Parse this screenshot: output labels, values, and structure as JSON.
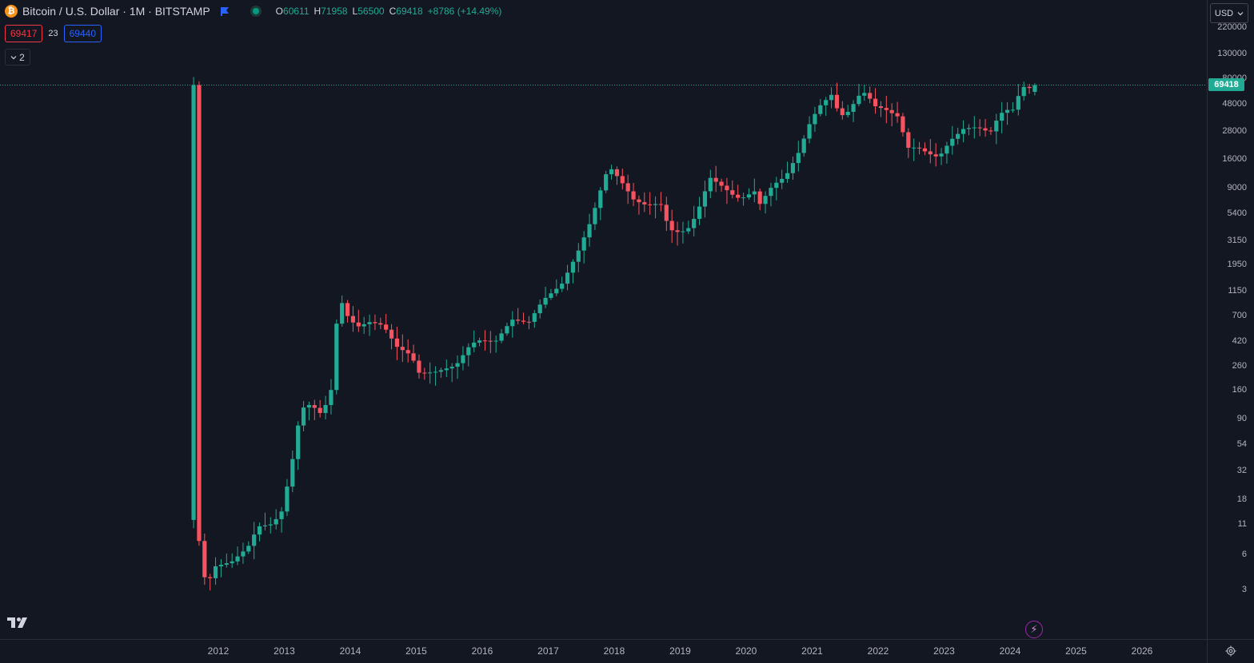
{
  "header": {
    "coin_icon": "bitcoin-icon",
    "title": "Bitcoin / U.S. Dollar · 1M · BITSTAMP",
    "ohlc": {
      "open_label": "O",
      "open": "60611",
      "high_label": "H",
      "high": "71958",
      "low_label": "L",
      "low": "56500",
      "close_label": "C",
      "close": "69418",
      "change": "+8786 (+14.49%)"
    }
  },
  "trade": {
    "sell_price": "69417",
    "spread": "23",
    "buy_price": "69440"
  },
  "indicators_toggle": {
    "count": "2"
  },
  "currency": {
    "label": "USD"
  },
  "colors": {
    "up": "#22ab94",
    "down": "#f7525f",
    "background": "#131722",
    "bolt": "#9c27b0"
  },
  "chart_data": {
    "type": "candlestick",
    "title": "Bitcoin / U.S. Dollar · 1M · BITSTAMP",
    "y_scale": "log",
    "y_ticks": [
      "220000",
      "130000",
      "80000",
      "48000",
      "28000",
      "16000",
      "9000",
      "5400",
      "3150",
      "1950",
      "1150",
      "700",
      "420",
      "260",
      "160",
      "90",
      "54",
      "32",
      "18",
      "11",
      "6",
      "3"
    ],
    "x_ticks": [
      "2012",
      "2013",
      "2014",
      "2015",
      "2016",
      "2017",
      "2018",
      "2019",
      "2020",
      "2021",
      "2022",
      "2023",
      "2024",
      "2025",
      "2026"
    ],
    "last_price": "69418",
    "approx_yearly_closes": [
      {
        "year": "2011",
        "value": 4.7
      },
      {
        "year": "2012",
        "value": 13.5
      },
      {
        "year": "2013",
        "value": 740
      },
      {
        "year": "2014",
        "value": 320
      },
      {
        "year": "2015",
        "value": 430
      },
      {
        "year": "2016",
        "value": 960
      },
      {
        "year": "2017",
        "value": 13800
      },
      {
        "year": "2018",
        "value": 3700
      },
      {
        "year": "2019",
        "value": 7200
      },
      {
        "year": "2020",
        "value": 29000
      },
      {
        "year": "2021",
        "value": 46200
      },
      {
        "year": "2022",
        "value": 16500
      },
      {
        "year": "2023",
        "value": 42300
      },
      {
        "year": "2024",
        "value": 69418
      }
    ]
  }
}
